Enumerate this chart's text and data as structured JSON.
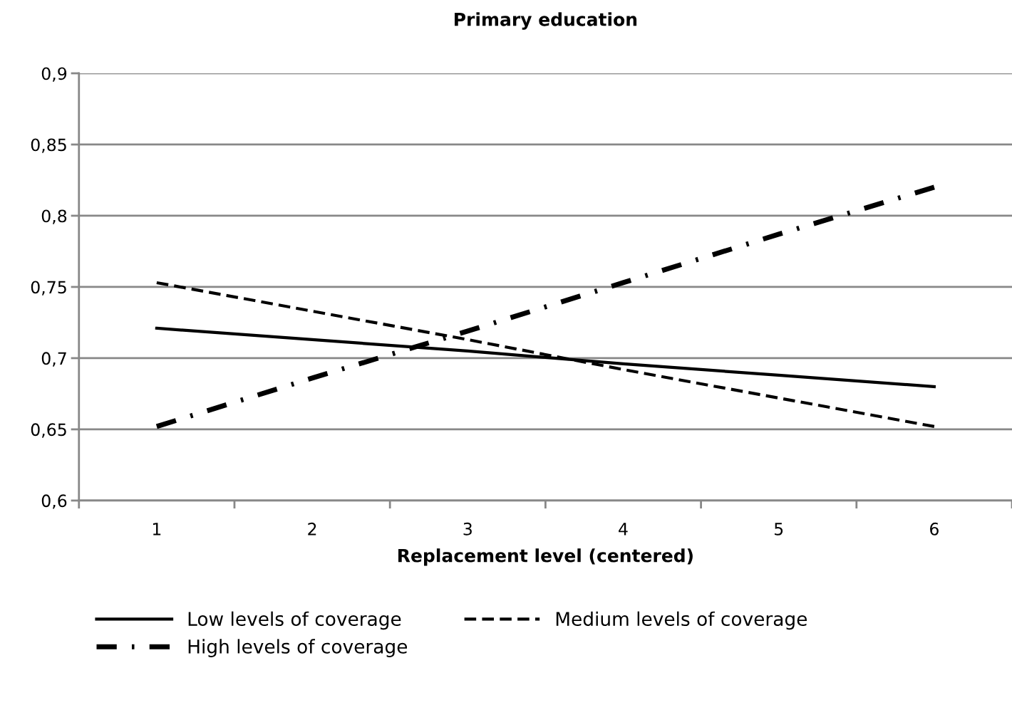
{
  "chart_data": {
    "type": "line",
    "title": "Primary education",
    "xlabel": "Replacement level (centered)",
    "categories": [
      "1",
      "2",
      "3",
      "4",
      "5",
      "6"
    ],
    "series": [
      {
        "name": "Low levels of coverage",
        "color": "#000000",
        "line_style": "solid",
        "values": [
          0.721,
          0.713,
          0.705,
          0.696,
          0.688,
          0.68
        ]
      },
      {
        "name": "Medium levels of coverage",
        "color": "#000000",
        "line_style": "dashed",
        "values": [
          0.753,
          0.733,
          0.713,
          0.692,
          0.672,
          0.652
        ]
      },
      {
        "name": "High levels of coverage",
        "color": "#000000",
        "line_style": "dashdot",
        "values": [
          0.652,
          0.686,
          0.719,
          0.753,
          0.787,
          0.82
        ]
      }
    ],
    "ylim": [
      0.6,
      0.9
    ],
    "yticks": [
      {
        "value": 0.6,
        "label": "0,6"
      },
      {
        "value": 0.65,
        "label": "0,65"
      },
      {
        "value": 0.7,
        "label": "0,7"
      },
      {
        "value": 0.75,
        "label": "0,75"
      },
      {
        "value": 0.8,
        "label": "0,8"
      },
      {
        "value": 0.85,
        "label": "0,85"
      },
      {
        "value": 0.9,
        "label": "0,9"
      }
    ],
    "grid": "y",
    "legend": "bottom",
    "marker": "none"
  }
}
